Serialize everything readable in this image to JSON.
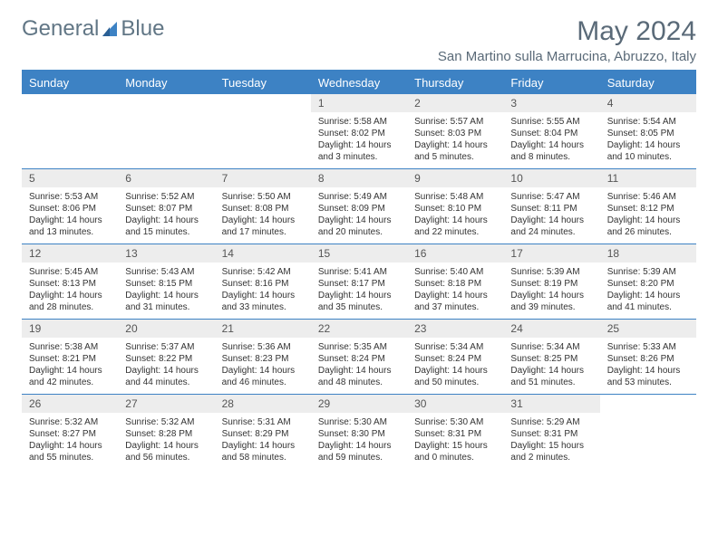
{
  "brand": {
    "name_a": "General",
    "name_b": "Blue",
    "icon_color": "#3d82c4"
  },
  "title": {
    "month": "May 2024",
    "location": "San Martino sulla Marrucina, Abruzzo, Italy"
  },
  "colors": {
    "accent": "#3d82c4",
    "heading_text": "#5a6a78",
    "daynum_bg": "#ededed"
  },
  "day_headers": [
    "Sunday",
    "Monday",
    "Tuesday",
    "Wednesday",
    "Thursday",
    "Friday",
    "Saturday"
  ],
  "weeks": [
    [
      null,
      null,
      null,
      {
        "n": "1",
        "sunrise": "Sunrise: 5:58 AM",
        "sunset": "Sunset: 8:02 PM",
        "day": "Daylight: 14 hours and 3 minutes."
      },
      {
        "n": "2",
        "sunrise": "Sunrise: 5:57 AM",
        "sunset": "Sunset: 8:03 PM",
        "day": "Daylight: 14 hours and 5 minutes."
      },
      {
        "n": "3",
        "sunrise": "Sunrise: 5:55 AM",
        "sunset": "Sunset: 8:04 PM",
        "day": "Daylight: 14 hours and 8 minutes."
      },
      {
        "n": "4",
        "sunrise": "Sunrise: 5:54 AM",
        "sunset": "Sunset: 8:05 PM",
        "day": "Daylight: 14 hours and 10 minutes."
      }
    ],
    [
      {
        "n": "5",
        "sunrise": "Sunrise: 5:53 AM",
        "sunset": "Sunset: 8:06 PM",
        "day": "Daylight: 14 hours and 13 minutes."
      },
      {
        "n": "6",
        "sunrise": "Sunrise: 5:52 AM",
        "sunset": "Sunset: 8:07 PM",
        "day": "Daylight: 14 hours and 15 minutes."
      },
      {
        "n": "7",
        "sunrise": "Sunrise: 5:50 AM",
        "sunset": "Sunset: 8:08 PM",
        "day": "Daylight: 14 hours and 17 minutes."
      },
      {
        "n": "8",
        "sunrise": "Sunrise: 5:49 AM",
        "sunset": "Sunset: 8:09 PM",
        "day": "Daylight: 14 hours and 20 minutes."
      },
      {
        "n": "9",
        "sunrise": "Sunrise: 5:48 AM",
        "sunset": "Sunset: 8:10 PM",
        "day": "Daylight: 14 hours and 22 minutes."
      },
      {
        "n": "10",
        "sunrise": "Sunrise: 5:47 AM",
        "sunset": "Sunset: 8:11 PM",
        "day": "Daylight: 14 hours and 24 minutes."
      },
      {
        "n": "11",
        "sunrise": "Sunrise: 5:46 AM",
        "sunset": "Sunset: 8:12 PM",
        "day": "Daylight: 14 hours and 26 minutes."
      }
    ],
    [
      {
        "n": "12",
        "sunrise": "Sunrise: 5:45 AM",
        "sunset": "Sunset: 8:13 PM",
        "day": "Daylight: 14 hours and 28 minutes."
      },
      {
        "n": "13",
        "sunrise": "Sunrise: 5:43 AM",
        "sunset": "Sunset: 8:15 PM",
        "day": "Daylight: 14 hours and 31 minutes."
      },
      {
        "n": "14",
        "sunrise": "Sunrise: 5:42 AM",
        "sunset": "Sunset: 8:16 PM",
        "day": "Daylight: 14 hours and 33 minutes."
      },
      {
        "n": "15",
        "sunrise": "Sunrise: 5:41 AM",
        "sunset": "Sunset: 8:17 PM",
        "day": "Daylight: 14 hours and 35 minutes."
      },
      {
        "n": "16",
        "sunrise": "Sunrise: 5:40 AM",
        "sunset": "Sunset: 8:18 PM",
        "day": "Daylight: 14 hours and 37 minutes."
      },
      {
        "n": "17",
        "sunrise": "Sunrise: 5:39 AM",
        "sunset": "Sunset: 8:19 PM",
        "day": "Daylight: 14 hours and 39 minutes."
      },
      {
        "n": "18",
        "sunrise": "Sunrise: 5:39 AM",
        "sunset": "Sunset: 8:20 PM",
        "day": "Daylight: 14 hours and 41 minutes."
      }
    ],
    [
      {
        "n": "19",
        "sunrise": "Sunrise: 5:38 AM",
        "sunset": "Sunset: 8:21 PM",
        "day": "Daylight: 14 hours and 42 minutes."
      },
      {
        "n": "20",
        "sunrise": "Sunrise: 5:37 AM",
        "sunset": "Sunset: 8:22 PM",
        "day": "Daylight: 14 hours and 44 minutes."
      },
      {
        "n": "21",
        "sunrise": "Sunrise: 5:36 AM",
        "sunset": "Sunset: 8:23 PM",
        "day": "Daylight: 14 hours and 46 minutes."
      },
      {
        "n": "22",
        "sunrise": "Sunrise: 5:35 AM",
        "sunset": "Sunset: 8:24 PM",
        "day": "Daylight: 14 hours and 48 minutes."
      },
      {
        "n": "23",
        "sunrise": "Sunrise: 5:34 AM",
        "sunset": "Sunset: 8:24 PM",
        "day": "Daylight: 14 hours and 50 minutes."
      },
      {
        "n": "24",
        "sunrise": "Sunrise: 5:34 AM",
        "sunset": "Sunset: 8:25 PM",
        "day": "Daylight: 14 hours and 51 minutes."
      },
      {
        "n": "25",
        "sunrise": "Sunrise: 5:33 AM",
        "sunset": "Sunset: 8:26 PM",
        "day": "Daylight: 14 hours and 53 minutes."
      }
    ],
    [
      {
        "n": "26",
        "sunrise": "Sunrise: 5:32 AM",
        "sunset": "Sunset: 8:27 PM",
        "day": "Daylight: 14 hours and 55 minutes."
      },
      {
        "n": "27",
        "sunrise": "Sunrise: 5:32 AM",
        "sunset": "Sunset: 8:28 PM",
        "day": "Daylight: 14 hours and 56 minutes."
      },
      {
        "n": "28",
        "sunrise": "Sunrise: 5:31 AM",
        "sunset": "Sunset: 8:29 PM",
        "day": "Daylight: 14 hours and 58 minutes."
      },
      {
        "n": "29",
        "sunrise": "Sunrise: 5:30 AM",
        "sunset": "Sunset: 8:30 PM",
        "day": "Daylight: 14 hours and 59 minutes."
      },
      {
        "n": "30",
        "sunrise": "Sunrise: 5:30 AM",
        "sunset": "Sunset: 8:31 PM",
        "day": "Daylight: 15 hours and 0 minutes."
      },
      {
        "n": "31",
        "sunrise": "Sunrise: 5:29 AM",
        "sunset": "Sunset: 8:31 PM",
        "day": "Daylight: 15 hours and 2 minutes."
      },
      null
    ]
  ]
}
